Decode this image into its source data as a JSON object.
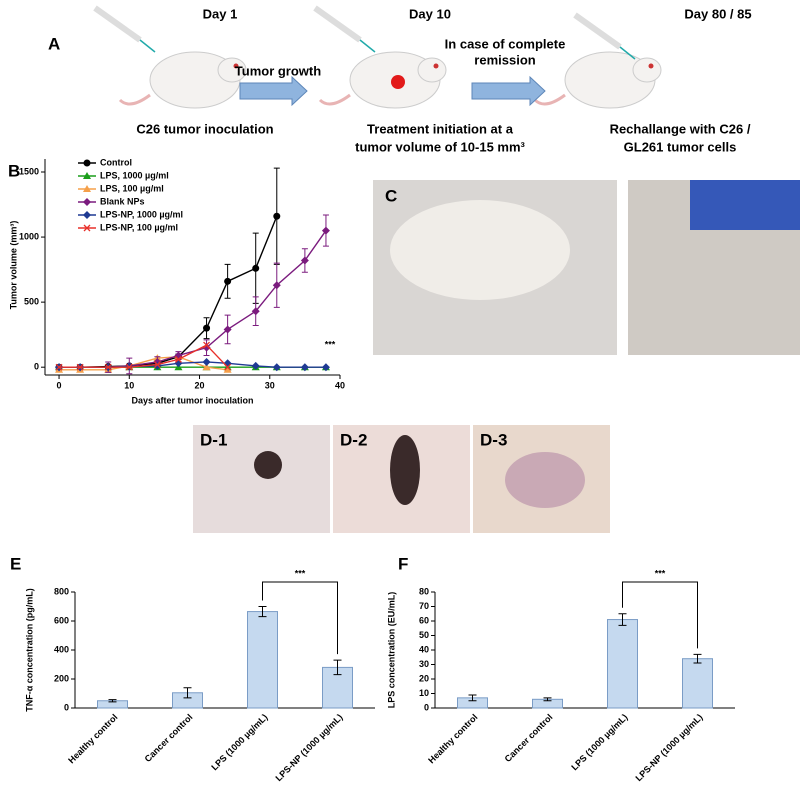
{
  "panel_a": {
    "label": "A",
    "days": [
      "Day 1",
      "Day 10",
      "Day 80 / 85"
    ],
    "arrows": [
      [
        "Tumor growth"
      ],
      [
        "In case of complete",
        "remission"
      ]
    ],
    "captions": [
      [
        "C26 tumor inoculation"
      ],
      [
        "Treatment initiation at a",
        "tumor volume of 10-15 mm³"
      ],
      [
        "Rechallange with C26 /",
        "GL261 tumor cells"
      ]
    ]
  },
  "photos": {
    "labels": [
      "C",
      "D-1",
      "D-2",
      "D-3"
    ]
  },
  "chart_data": [
    {
      "type": "line",
      "panel": "B",
      "x_label": "Days after tumor inoculation",
      "y_label": "Tumor volume (mm³)",
      "xlim": [
        -2,
        40
      ],
      "xticks": [
        0,
        10,
        20,
        30,
        40
      ],
      "ylim": [
        -60,
        1600
      ],
      "yticks": [
        0,
        500,
        1000,
        1500
      ],
      "annotation": "***",
      "series": [
        {
          "name": "Control",
          "color": "#000000",
          "marker": "circle",
          "x": [
            0,
            3,
            7,
            10,
            14,
            17,
            21,
            24,
            28,
            31
          ],
          "values": [
            0,
            0,
            5,
            10,
            30,
            80,
            300,
            660,
            760,
            1160
          ],
          "errors": [
            0,
            0,
            0,
            5,
            10,
            20,
            80,
            130,
            270,
            370
          ]
        },
        {
          "name": "LPS, 1000 µg/ml",
          "color": "#1a9e1a",
          "marker": "triangle",
          "x": [
            0,
            3,
            7,
            10,
            14,
            17,
            21,
            24,
            28,
            31,
            35,
            38
          ],
          "values": [
            0,
            0,
            0,
            0,
            0,
            0,
            0,
            0,
            0,
            0,
            0,
            0
          ]
        },
        {
          "name": "LPS, 100 µg/ml",
          "color": "#f5a04a",
          "marker": "triangle",
          "x": [
            0,
            3,
            7,
            10,
            14,
            17,
            21,
            24
          ],
          "values": [
            -20,
            -20,
            -20,
            10,
            70,
            80,
            0,
            -20
          ]
        },
        {
          "name": "Blank NPs",
          "color": "#7b1b7e",
          "marker": "diamond",
          "x": [
            0,
            3,
            7,
            10,
            14,
            17,
            21,
            24,
            28,
            31,
            35,
            38
          ],
          "values": [
            0,
            0,
            0,
            10,
            40,
            90,
            150,
            290,
            430,
            630,
            820,
            1050
          ],
          "errors": [
            0,
            0,
            40,
            60,
            40,
            30,
            60,
            110,
            110,
            170,
            90,
            120
          ]
        },
        {
          "name": "LPS-NP, 1000 µg/ml",
          "color": "#1f3a93",
          "marker": "diamond",
          "x": [
            0,
            3,
            7,
            10,
            14,
            17,
            21,
            24,
            28,
            31,
            35,
            38
          ],
          "values": [
            0,
            0,
            0,
            5,
            10,
            30,
            40,
            30,
            10,
            0,
            0,
            0
          ]
        },
        {
          "name": "LPS-NP, 100 µg/ml",
          "color": "#e8302a",
          "marker": "x",
          "x": [
            0,
            3,
            7,
            10,
            14,
            17,
            21,
            24
          ],
          "values": [
            0,
            0,
            0,
            0,
            20,
            60,
            170,
            0
          ]
        }
      ]
    },
    {
      "type": "bar",
      "panel": "E",
      "y_label": "TNF-α concentration (pg/mL)",
      "color": "#c5d9ef",
      "categories": [
        "Healthy control",
        "Cancer control",
        "LPS (1000 µg/mL)",
        "LPS-NP (1000 µg/mL)"
      ],
      "values": [
        50,
        105,
        665,
        280
      ],
      "errors": [
        8,
        35,
        35,
        50
      ],
      "ylim": [
        0,
        800
      ],
      "yticks": [
        0,
        200,
        400,
        600,
        800
      ],
      "annotation": "***"
    },
    {
      "type": "bar",
      "panel": "F",
      "y_label": "LPS concentration (EU/mL)",
      "color": "#c5d9ef",
      "categories": [
        "Healthy control",
        "Cancer control",
        "LPS (1000 µg/mL)",
        "LPS-NP (1000 µg/mL)"
      ],
      "values": [
        7,
        6,
        61,
        34
      ],
      "errors": [
        2,
        1,
        4,
        3
      ],
      "ylim": [
        0,
        80
      ],
      "yticks": [
        0,
        10,
        20,
        30,
        40,
        50,
        60,
        70,
        80
      ],
      "annotation": "***"
    }
  ]
}
